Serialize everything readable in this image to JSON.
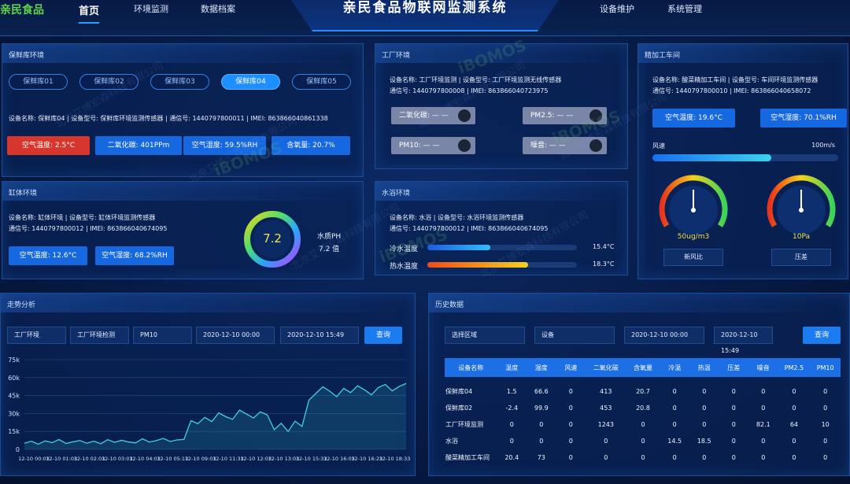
{
  "header": {
    "logo": "亲民食品",
    "title": "亲民食品物联网监测系统",
    "nav_left": [
      "首页",
      "环境监测",
      "数据档案"
    ],
    "nav_right": [
      "设备维护",
      "系统管理"
    ]
  },
  "watermark": {
    "text": "北京艾博宏森科技有限公司",
    "logo": "iBOMOS"
  },
  "fresh_store": {
    "title": "保鲜库环境",
    "tabs": [
      "保鲜库01",
      "保鲜库02",
      "保鲜库03",
      "保鲜库04",
      "保鲜库05"
    ],
    "info": "设备名称: 保鲜库04 | 设备型号: 保鲜库环境监测传感器 | 通信号: 1440797800011 | IMEI: 863866040861338",
    "badges": [
      "空气温度: 2.5°C",
      "二氧化碳: 401PPm",
      "空气湿度: 59.5%RH",
      "含氧量: 20.7%"
    ]
  },
  "factory": {
    "title": "工厂环境",
    "info": [
      "设备名称: 工厂环境监测 | 设备型号: 工厂环境监测无线传感器",
      "通信号: 1440797800008 | IMEI: 863866040723975"
    ],
    "toggles": [
      "二氧化碳: — —",
      "PM2.5: — —",
      "PM10: — —",
      "噪音: — —"
    ]
  },
  "workshop": {
    "title": "精加工车间",
    "info": [
      "设备名称: 酸菜精加工车间 | 设备型号: 车间环境监测传感器",
      "通信号: 1440797800010 | IMEI: 863866040658072"
    ],
    "badges": [
      "空气温度: 19.6°C",
      "空气湿度: 70.1%RH"
    ],
    "wind_label": "风速",
    "wind_max": "100m/s",
    "gauges": [
      {
        "value": "50ug/m3",
        "label": "新风比"
      },
      {
        "value": "10Pa",
        "label": "压差"
      }
    ]
  },
  "tank": {
    "title": "缸体环境",
    "info": [
      "设备名称: 缸体环境   |   设备型号: 缸体环境监测传感器",
      "通信号: 1440797800012 | IMEI: 863866040674095"
    ],
    "badges": [
      "空气温度: 12.6°C",
      "空气湿度: 68.2%RH"
    ],
    "ph": "7.2",
    "ph_label": "水质PH",
    "ph_unit": "7.2 值"
  },
  "water_bath": {
    "title": "水浴环境",
    "info": [
      "设备名称: 水浴      |   设备型号: 水浴环境监测传感器",
      "通信号: 1440797800012 | IMEI: 863866040674095"
    ],
    "rows": [
      {
        "label": "冷水温度",
        "value": "15.4°C"
      },
      {
        "label": "热水温度",
        "value": "18.3°C"
      }
    ]
  },
  "trend": {
    "title": "走势分析",
    "filters": [
      "工厂环境",
      "工厂环境检测",
      "PM10",
      "2020-12-10 00:00",
      "2020-12-10 15:49"
    ],
    "button": "查询"
  },
  "chart_data": {
    "type": "line",
    "color": "#3fd1e6",
    "grid": true,
    "ylim": [
      0,
      75000
    ],
    "yticks": [
      0,
      {
        "value": 15000,
        "label": "15k"
      },
      {
        "value": 30000,
        "label": "30k"
      },
      {
        "value": 45000,
        "label": "45k"
      },
      {
        "value": 60000,
        "label": "60k"
      },
      {
        "value": 75000,
        "label": "75k"
      }
    ],
    "categories": [
      "12-10 00:03",
      null,
      null,
      null,
      "12-10 01:03",
      null,
      null,
      null,
      "12-10 02:03",
      null,
      null,
      null,
      "12-10 03:03",
      null,
      null,
      null,
      "12-10 04:03",
      null,
      null,
      null,
      "12-10 05:13",
      null,
      null,
      null,
      "12-10 09:03",
      null,
      null,
      null,
      "12-10 11:33",
      null,
      null,
      null,
      "12-10 12:03",
      null,
      null,
      null,
      "12-10 13:03",
      null,
      null,
      null,
      "12-10 15:33",
      null,
      null,
      null,
      "12-10 16:03",
      null,
      null,
      null,
      "12-10 16:23",
      null,
      null,
      null,
      "12-10 18:33",
      null,
      null,
      null
    ],
    "values": [
      5200,
      6800,
      4300,
      7100,
      5600,
      8200,
      4900,
      6300,
      7400,
      5100,
      6900,
      4700,
      8100,
      5900,
      7600,
      6200,
      5400,
      8800,
      6100,
      7300,
      9200,
      6600,
      7900,
      8400,
      24000,
      21500,
      26800,
      23200,
      30500,
      27400,
      25100,
      32800,
      29600,
      26200,
      31400,
      28800,
      16500,
      21800,
      14900,
      23600,
      19200,
      41200,
      46800,
      52300,
      48600,
      44100,
      50900,
      47500,
      53200,
      49800,
      45600,
      51700,
      54300,
      48900,
      52600,
      55100
    ]
  },
  "history": {
    "title": "历史数据",
    "filters": [
      "选择区域",
      "设备",
      "2020-12-10 00:00",
      "2020-12-10 15:49"
    ],
    "button": "查询",
    "table": {
      "header": [
        "设备名称",
        "温度",
        "湿度",
        "风速",
        "二氧化碳",
        "含氧量",
        "冷温",
        "热温",
        "压差",
        "噪音",
        "PM2.5",
        "PM10"
      ],
      "rows": [
        [
          "保鲜库04",
          1.5,
          66.6,
          0,
          413,
          20.7,
          0,
          0,
          0,
          0,
          0,
          0
        ],
        [
          "保鲜库02",
          -2.4,
          99.9,
          0,
          453,
          20.8,
          0,
          0,
          0,
          0,
          0,
          0
        ],
        [
          "工厂环境监测",
          0,
          0,
          0,
          1243,
          0,
          0,
          0,
          0,
          82.1,
          64,
          10
        ],
        [
          "水浴",
          0,
          0,
          0,
          0,
          0,
          14.5,
          18.5,
          0,
          0,
          0,
          0
        ],
        [
          "酸菜精加工车间",
          20.4,
          73,
          0,
          0,
          0,
          0,
          0,
          0,
          0,
          0,
          0
        ]
      ]
    }
  }
}
